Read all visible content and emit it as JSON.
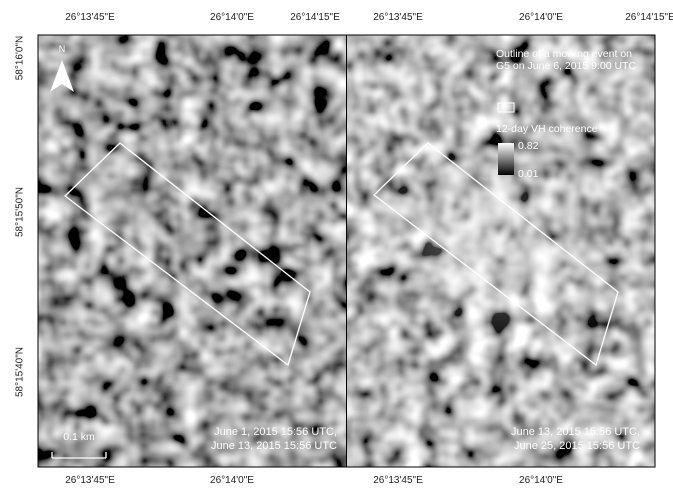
{
  "top_labels": [
    "26°13'45\"E",
    "26°14'0\"E",
    "26°14'15\"E",
    "26°13'45\"E",
    "26°14'0\"E",
    "26°14'15\"E"
  ],
  "bottom_labels": [
    "26°13'45\"E",
    "26°14'0\"E",
    "26°13'45\"E",
    "26°14'0\"E"
  ],
  "left_labels": [
    "58°16'0\"N",
    "58°15'50\"N",
    "58°15'40\"N"
  ],
  "north": "N",
  "scale": "0.1 km",
  "legend": {
    "outline": "Outline of a mowing event on G5 on June 6, 2015 9:00 UTC",
    "coherence_title": "12-day VH coherence",
    "max": 0.82,
    "min": 0.01
  },
  "panels": [
    {
      "caption": [
        "June 1, 2015 15:56 UTC,",
        "June 13, 2015 15:56 UTC"
      ]
    },
    {
      "caption": [
        "June 13, 2015 15:56 UTC,",
        "June 25, 2015 15:56 UTC"
      ]
    }
  ]
}
